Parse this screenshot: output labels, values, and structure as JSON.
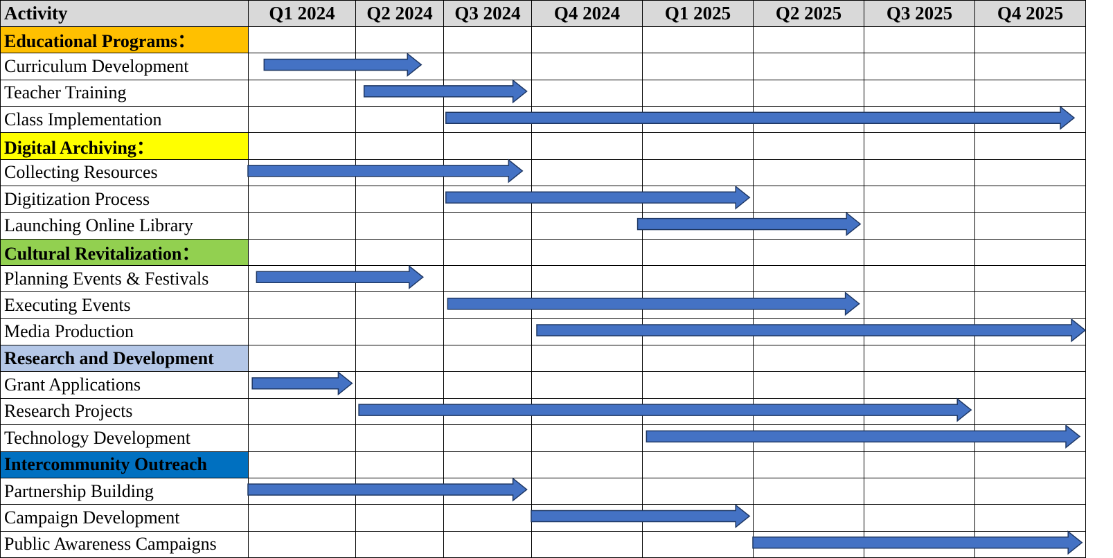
{
  "chart_data": {
    "type": "gantt",
    "activity_header": "Activity",
    "quarters": [
      "Q1 2024",
      "Q2 2024",
      "Q3 2024",
      "Q4 2024",
      "Q1 2025",
      "Q2 2025",
      "Q3 2025",
      "Q4 2025"
    ],
    "rows": [
      {
        "kind": "category",
        "label": "Educational Programs：",
        "color": "#ffc000"
      },
      {
        "kind": "task",
        "label": "Curriculum Development",
        "start": 0.15,
        "end": 1.75
      },
      {
        "kind": "task",
        "label": "Teacher Training",
        "start": 1.1,
        "end": 2.95
      },
      {
        "kind": "task",
        "label": "Class Implementation",
        "start": 2.03,
        "end": 7.9
      },
      {
        "kind": "category",
        "label": "Digital Archiving：",
        "color": "#ffff00"
      },
      {
        "kind": "task",
        "label": "Collecting Resources",
        "start": 0.0,
        "end": 2.9
      },
      {
        "kind": "task",
        "label": "Digitization Process",
        "start": 2.03,
        "end": 4.97
      },
      {
        "kind": "task",
        "label": "Launching Online Library",
        "start": 3.96,
        "end": 5.97
      },
      {
        "kind": "category",
        "label": "Cultural Revitalization：",
        "color": "#92d050"
      },
      {
        "kind": "task",
        "label": "Planning Events & Festivals",
        "start": 0.08,
        "end": 1.77
      },
      {
        "kind": "task",
        "label": "Executing Events",
        "start": 2.05,
        "end": 5.96
      },
      {
        "kind": "task",
        "label": "Media Production",
        "start": 3.05,
        "end": 8.0
      },
      {
        "kind": "category",
        "label": "Research and Development",
        "color": "#b4c7e7"
      },
      {
        "kind": "task",
        "label": "Grant Applications",
        "start": 0.04,
        "end": 0.97
      },
      {
        "kind": "task",
        "label": "Research Projects",
        "start": 1.04,
        "end": 6.97
      },
      {
        "kind": "task",
        "label": "Technology Development",
        "start": 4.04,
        "end": 7.95
      },
      {
        "kind": "category",
        "label": "Intercommunity Outreach",
        "color": "#0070c0"
      },
      {
        "kind": "task",
        "label": "Partnership Building",
        "start": 0.0,
        "end": 2.95
      },
      {
        "kind": "task",
        "label": "Campaign Development",
        "start": 3.0,
        "end": 4.97
      },
      {
        "kind": "task",
        "label": "Public Awareness Campaigns",
        "start": 5.0,
        "end": 7.97
      }
    ],
    "bar_color": "#4472c4",
    "bar_stroke": "#1f3864"
  }
}
